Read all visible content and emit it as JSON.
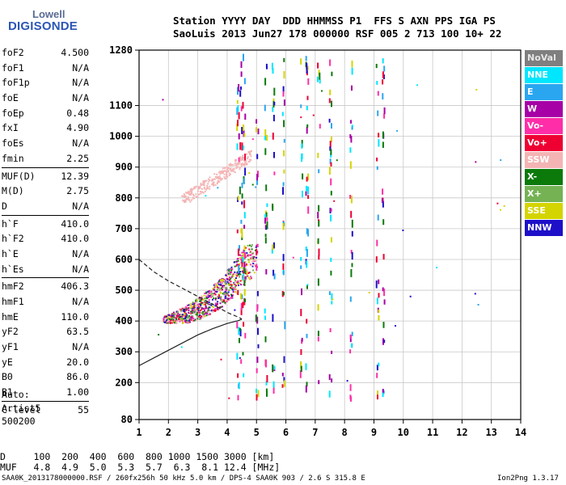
{
  "logo": {
    "line1": "Lowell",
    "line2": "DIGISONDE"
  },
  "header": {
    "line1": "Station YYYY DAY  DDD HHMMSS P1  FFS S AXN PPS IGA PS",
    "line2": "SaoLuis 2013 Jun27 178 000000 RSF 005 2 713 100 10+ 22"
  },
  "params": [
    {
      "k": "foF2",
      "v": "4.500"
    },
    {
      "k": "foF1",
      "v": "N/A"
    },
    {
      "k": "foF1p",
      "v": "N/A"
    },
    {
      "k": "foE",
      "v": "N/A"
    },
    {
      "k": "foEp",
      "v": "0.48"
    },
    {
      "k": "fxI",
      "v": "4.90"
    },
    {
      "k": "foEs",
      "v": "N/A"
    },
    {
      "k": "fmin",
      "v": "2.25"
    },
    {
      "sep": true
    },
    {
      "k": "MUF(D)",
      "v": "12.39"
    },
    {
      "k": "M(D)",
      "v": "2.75"
    },
    {
      "k": "D",
      "v": "N/A"
    },
    {
      "sep": true
    },
    {
      "k": "h`F",
      "v": "410.0"
    },
    {
      "k": "h`F2",
      "v": "410.0"
    },
    {
      "k": "h`E",
      "v": "N/A"
    },
    {
      "k": "h`Es",
      "v": "N/A"
    },
    {
      "sep": true
    },
    {
      "k": "hmF2",
      "v": "406.3"
    },
    {
      "k": "hmF1",
      "v": "N/A"
    },
    {
      "k": "hmE",
      "v": "110.0"
    },
    {
      "k": "yF2",
      "v": "63.5"
    },
    {
      "k": "yF1",
      "v": "N/A"
    },
    {
      "k": "yE",
      "v": "20.0"
    },
    {
      "k": "B0",
      "v": "86.0"
    },
    {
      "k": "B1",
      "v": "1.00"
    },
    {
      "sep": true
    },
    {
      "k": "C-level",
      "v": "55"
    }
  ],
  "auto": {
    "line1": "Auto:",
    "line2": "Artist5",
    "line3": "500200"
  },
  "dmuf": {
    "d_row": "D     100  200  400  600  800 1000 1500 3000 [km]",
    "muf_row": "MUF   4.8  4.9  5.0  5.3  5.7  6.3  8.1 12.4 [MHz]"
  },
  "footer": {
    "left": "SAA0K_2013178000000.RSF / 260fx256h 50 kHz 5.0 km / DPS-4 SAA0K 903 / 2.6 S 315.8 E",
    "right": "Ion2Png 1.3.17"
  },
  "legend": [
    {
      "label": "NoVal",
      "bg": "#7f7f7f",
      "fg": "#e6e6e6"
    },
    {
      "label": "NNE",
      "bg": "#00e6ff",
      "fg": "#ffffff"
    },
    {
      "label": "E",
      "bg": "#2aa6f0",
      "fg": "#ffffff"
    },
    {
      "label": "W",
      "bg": "#a600a6",
      "fg": "#ffffff"
    },
    {
      "label": "Vo-",
      "bg": "#ff2ea8",
      "fg": "#ffffff"
    },
    {
      "label": "Vo+",
      "bg": "#ee0033",
      "fg": "#ffffff"
    },
    {
      "label": "SSW",
      "bg": "#f4b4b4",
      "fg": "#ffffff"
    },
    {
      "label": "X-",
      "bg": "#0b7a0b",
      "fg": "#ffffff"
    },
    {
      "label": "X+",
      "bg": "#74b254",
      "fg": "#ffffff"
    },
    {
      "label": "SSE",
      "bg": "#d4d400",
      "fg": "#ffffff"
    },
    {
      "label": "NNW",
      "bg": "#1e10c8",
      "fg": "#ffffff"
    }
  ],
  "chart_data": {
    "type": "scatter",
    "title": "",
    "xlabel": "",
    "ylabel": "",
    "xlim": [
      1,
      14
    ],
    "ylim": [
      80,
      1280
    ],
    "x_ticks": [
      1,
      2,
      3,
      4,
      5,
      6,
      7,
      8,
      9,
      10,
      11,
      12,
      13,
      14
    ],
    "y_ticks": [
      80,
      200,
      300,
      400,
      500,
      600,
      700,
      800,
      900,
      1000,
      1100,
      1280
    ],
    "grid": true,
    "legend_position": "right",
    "series": [
      {
        "kind": "echoes",
        "region": "F-trace",
        "freq_range": [
          1.8,
          5.0
        ],
        "height_range": [
          395,
          650
        ],
        "colors": [
          "SSW",
          "Vo-",
          "Vo+",
          "X-",
          "X+",
          "SSE",
          "NNW",
          "W"
        ]
      },
      {
        "kind": "echoes",
        "region": "2F-trace",
        "freq_range": [
          2.4,
          4.8
        ],
        "height_range": [
          780,
          980
        ],
        "colors": [
          "SSW"
        ]
      },
      {
        "kind": "profile",
        "style": "solid",
        "points": [
          [
            1.0,
            255
          ],
          [
            1.5,
            280
          ],
          [
            2.0,
            305
          ],
          [
            2.5,
            330
          ],
          [
            3.0,
            355
          ],
          [
            3.5,
            375
          ],
          [
            4.0,
            392
          ],
          [
            4.4,
            402
          ],
          [
            4.5,
            406.3
          ]
        ]
      },
      {
        "kind": "profile",
        "style": "dashed",
        "points": [
          [
            1.0,
            600
          ],
          [
            1.5,
            560
          ],
          [
            2.0,
            530
          ],
          [
            2.5,
            505
          ],
          [
            3.0,
            480
          ],
          [
            3.5,
            455
          ],
          [
            4.0,
            428
          ],
          [
            4.4,
            412
          ],
          [
            4.5,
            406.3
          ]
        ]
      }
    ]
  }
}
